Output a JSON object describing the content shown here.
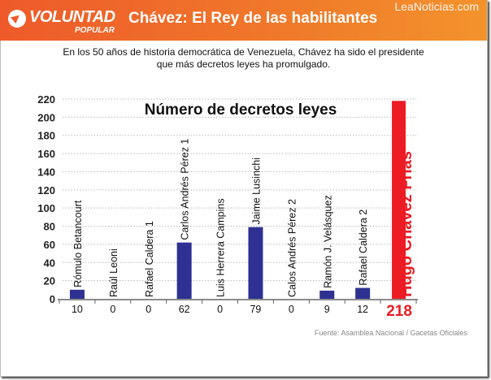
{
  "header": {
    "logo_main": "VOLUNTAD",
    "logo_sub": "POPULAR",
    "title": "Chávez: El Rey de las habilitantes",
    "watermark": "LeaNoticias.com",
    "brand_color": "#ee5a2a"
  },
  "subtitle_line1": "En los 50 años de historia democrática de Venezuela, Chávez ha sido el presidente",
  "subtitle_line2": "que más decretos leyes ha promulgado.",
  "chart_data": {
    "type": "bar",
    "title": "Número de decretos leyes",
    "categories": [
      "Rómulo Betancourt",
      "Raúl Leoni",
      "Rafael Caldera 1",
      "Carlos Andrés Pérez 1",
      "Luis Herrera Campins",
      "Jaime Lusinchi",
      "Calos Andrés Pérez 2",
      "Ramón J. Velásquez",
      "Rafael Caldera 2",
      "Hugo Chávez Frías"
    ],
    "values": [
      10,
      0,
      0,
      62,
      0,
      79,
      0,
      9,
      12,
      218
    ],
    "value_labels": [
      "10",
      "0",
      "0",
      "62",
      "0",
      "79",
      "0",
      "9",
      "12",
      "218"
    ],
    "ylim": [
      0,
      220
    ],
    "yticks": [
      0,
      20,
      40,
      60,
      80,
      100,
      120,
      140,
      160,
      180,
      200,
      220
    ],
    "grid": true,
    "colors": {
      "default": "#2e3192",
      "highlight": "#ed1c24"
    },
    "highlight_index": 9
  },
  "source": "Fuente: Asamblea Nacional / Gacetas Oficiales"
}
